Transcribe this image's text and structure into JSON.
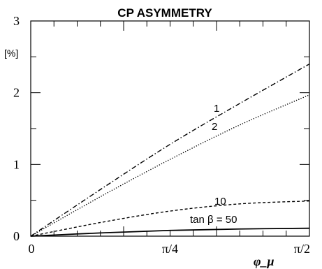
{
  "chart_data": {
    "type": "line",
    "title": "CP ASYMMETRY",
    "xlabel": "φ_μ",
    "ylabel": "[%]",
    "xlim": [
      0,
      1.5708
    ],
    "ylim": [
      0,
      3
    ],
    "x_ticks": [
      {
        "value": 0,
        "label": "0"
      },
      {
        "value": 0.7854,
        "label": "π/4"
      },
      {
        "value": 1.5708,
        "label": "π/2"
      }
    ],
    "y_ticks": [
      {
        "value": 0,
        "label": "0"
      },
      {
        "value": 1,
        "label": "1"
      },
      {
        "value": 2,
        "label": "2"
      },
      {
        "value": 3,
        "label": "3"
      }
    ],
    "grid": false,
    "series": [
      {
        "name": "1",
        "style": "dashdot",
        "x": [
          0,
          0.3927,
          0.7854,
          1.1781,
          1.5708
        ],
        "values": [
          0,
          0.65,
          1.28,
          1.85,
          2.4
        ]
      },
      {
        "name": "2",
        "style": "dotted",
        "x": [
          0,
          0.3927,
          0.7854,
          1.1781,
          1.5708
        ],
        "values": [
          0,
          0.55,
          1.07,
          1.55,
          1.97
        ]
      },
      {
        "name": "10",
        "style": "dashed",
        "x": [
          0,
          0.3927,
          0.7854,
          1.1781,
          1.5708
        ],
        "values": [
          0,
          0.19,
          0.35,
          0.45,
          0.49
        ]
      },
      {
        "name": "tan β = 50",
        "style": "solid",
        "x": [
          0,
          0.3927,
          0.7854,
          1.1781,
          1.5708
        ],
        "values": [
          0,
          0.045,
          0.08,
          0.1,
          0.11
        ]
      }
    ],
    "curve_labels": [
      "1",
      "2",
      "10",
      "tan β = 50"
    ]
  }
}
